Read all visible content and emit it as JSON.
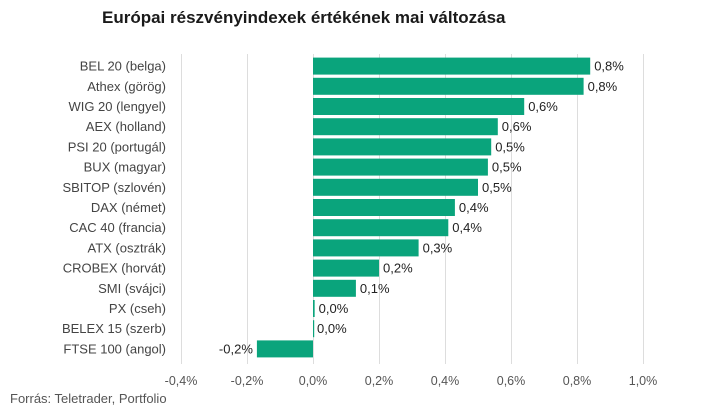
{
  "chart_data": {
    "type": "bar",
    "orientation": "horizontal",
    "title": "Európai részvényindexek értékének mai változása",
    "source": "Forrás: Teletrader, Portfolio",
    "categories": [
      "BEL 20 (belga)",
      "Athex (görög)",
      "WIG 20 (lengyel)",
      "AEX (holland)",
      "PSI 20 (portugál)",
      "BUX (magyar)",
      "SBITOP (szlovén)",
      "DAX (német)",
      "CAC 40 (francia)",
      "ATX (osztrák)",
      "CROBEX (horvát)",
      "SMI (svájci)",
      "PX (cseh)",
      "BELEX 15 (szerb)",
      "FTSE 100 (angol)"
    ],
    "values": [
      0.84,
      0.82,
      0.64,
      0.56,
      0.54,
      0.53,
      0.5,
      0.43,
      0.41,
      0.32,
      0.2,
      0.13,
      0.005,
      0.0,
      -0.17
    ],
    "data_labels": [
      "0,8%",
      "0,8%",
      "0,6%",
      "0,6%",
      "0,5%",
      "0,5%",
      "0,5%",
      "0,4%",
      "0,4%",
      "0,3%",
      "0,2%",
      "0,1%",
      "0,0%",
      "0,0%",
      "-0,2%"
    ],
    "xlim": [
      -0.4,
      1.0
    ],
    "xticks": [
      -0.4,
      -0.2,
      0.0,
      0.2,
      0.4,
      0.6,
      0.8,
      1.0
    ],
    "xtick_labels": [
      "-0,4%",
      "-0,2%",
      "0,0%",
      "0,2%",
      "0,4%",
      "0,6%",
      "0,8%",
      "1,0%"
    ],
    "grid": true,
    "bar_color": "#0aa47c",
    "grid_color": "#dddddd"
  }
}
